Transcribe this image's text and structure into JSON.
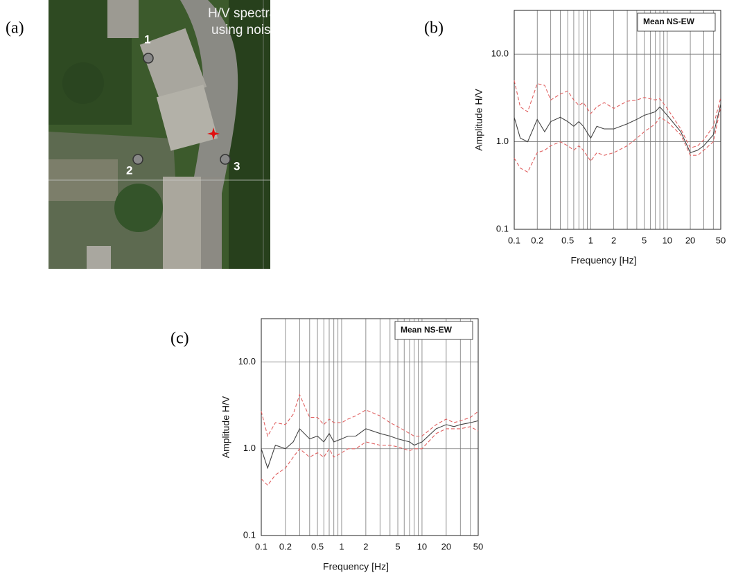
{
  "photo": {
    "panel": "(a)",
    "annotation": [
      "H/V spectral ratio",
      "using noise"
    ],
    "points": [
      "1",
      "2",
      "3"
    ]
  },
  "chart_data": [
    {
      "type": "line",
      "panel": "(b)",
      "xlabel": "Frequency [Hz]",
      "ylabel": "Amplitude H/V",
      "legend": "Mean NS-EW",
      "legend_position": "upper right",
      "xscale": "log",
      "yscale": "log",
      "grid": true,
      "xlim": [
        0.1,
        50
      ],
      "ylim": [
        0.1,
        31.6
      ],
      "xticks": [
        0.1,
        0.2,
        0.5,
        1,
        2,
        5,
        10,
        20,
        50
      ],
      "xminor": [
        0.3,
        0.4,
        0.6,
        0.7,
        0.8,
        0.9,
        3,
        4,
        6,
        7,
        8,
        9,
        30,
        40
      ],
      "yticks": [
        0.1,
        {
          "value": 1,
          "label": "1.0"
        },
        {
          "value": 10,
          "label": "10.0"
        }
      ],
      "x": [
        0.1,
        0.12,
        0.15,
        0.2,
        0.25,
        0.3,
        0.4,
        0.5,
        0.6,
        0.7,
        0.8,
        1,
        1.2,
        1.5,
        2,
        3,
        4,
        5,
        7,
        8,
        10,
        15,
        20,
        25,
        30,
        40,
        50
      ],
      "series": [
        {
          "color": "#444444",
          "dash": false,
          "values": [
            1.9,
            1.1,
            1.0,
            1.8,
            1.3,
            1.7,
            1.9,
            1.7,
            1.5,
            1.7,
            1.5,
            1.1,
            1.5,
            1.4,
            1.4,
            1.6,
            1.8,
            2.0,
            2.2,
            2.5,
            2.0,
            1.3,
            0.75,
            0.8,
            0.9,
            1.2,
            2.7
          ]
        },
        {
          "color": "#e06060",
          "dash": true,
          "values": [
            5.0,
            2.5,
            2.2,
            4.6,
            4.4,
            3.0,
            3.5,
            3.8,
            3.0,
            2.6,
            2.8,
            2.1,
            2.5,
            2.8,
            2.4,
            2.9,
            3.0,
            3.2,
            3.0,
            3.1,
            2.4,
            1.4,
            0.85,
            0.9,
            1.05,
            1.5,
            3.2
          ]
        },
        {
          "color": "#e06060",
          "dash": true,
          "values": [
            0.65,
            0.5,
            0.45,
            0.75,
            0.8,
            0.9,
            1.0,
            0.9,
            0.8,
            0.9,
            0.8,
            0.6,
            0.75,
            0.7,
            0.75,
            0.9,
            1.1,
            1.3,
            1.6,
            1.9,
            1.7,
            1.2,
            0.7,
            0.7,
            0.8,
            1.0,
            2.5
          ]
        }
      ]
    },
    {
      "type": "line",
      "panel": "(c)",
      "xlabel": "Frequency [Hz]",
      "ylabel": "Amplitude H/V",
      "legend": "Mean NS-EW",
      "legend_position": "upper right",
      "xscale": "log",
      "yscale": "log",
      "grid": true,
      "xlim": [
        0.1,
        50
      ],
      "ylim": [
        0.1,
        31.6
      ],
      "xticks": [
        0.1,
        0.2,
        0.5,
        1,
        2,
        5,
        10,
        20,
        50
      ],
      "xminor": [
        0.3,
        0.4,
        0.6,
        0.7,
        0.8,
        0.9,
        3,
        4,
        6,
        7,
        8,
        9,
        30,
        40
      ],
      "yticks": [
        0.1,
        {
          "value": 1,
          "label": "1.0"
        },
        {
          "value": 10,
          "label": "10.0"
        }
      ],
      "x": [
        0.1,
        0.12,
        0.15,
        0.2,
        0.25,
        0.3,
        0.4,
        0.5,
        0.6,
        0.7,
        0.8,
        1,
        1.2,
        1.5,
        2,
        3,
        4,
        5,
        7,
        8,
        10,
        15,
        20,
        25,
        30,
        40,
        50
      ],
      "series": [
        {
          "color": "#444444",
          "dash": false,
          "values": [
            1.0,
            0.6,
            1.1,
            1.0,
            1.2,
            1.7,
            1.3,
            1.4,
            1.2,
            1.5,
            1.2,
            1.3,
            1.4,
            1.4,
            1.7,
            1.5,
            1.4,
            1.3,
            1.2,
            1.1,
            1.2,
            1.7,
            1.9,
            1.8,
            1.9,
            2.0,
            2.1
          ]
        },
        {
          "color": "#e06060",
          "dash": true,
          "values": [
            2.7,
            1.4,
            2.0,
            1.9,
            2.5,
            4.2,
            2.3,
            2.3,
            1.9,
            2.2,
            2.0,
            2.0,
            2.2,
            2.4,
            2.8,
            2.4,
            2.0,
            1.8,
            1.5,
            1.4,
            1.4,
            1.9,
            2.2,
            2.0,
            2.1,
            2.3,
            2.7
          ]
        },
        {
          "color": "#e06060",
          "dash": true,
          "values": [
            0.45,
            0.38,
            0.5,
            0.6,
            0.8,
            1.0,
            0.8,
            0.9,
            0.8,
            1.0,
            0.8,
            0.9,
            1.0,
            1.0,
            1.2,
            1.1,
            1.1,
            1.05,
            0.95,
            1.0,
            1.0,
            1.5,
            1.7,
            1.7,
            1.7,
            1.8,
            1.6
          ]
        }
      ]
    }
  ]
}
